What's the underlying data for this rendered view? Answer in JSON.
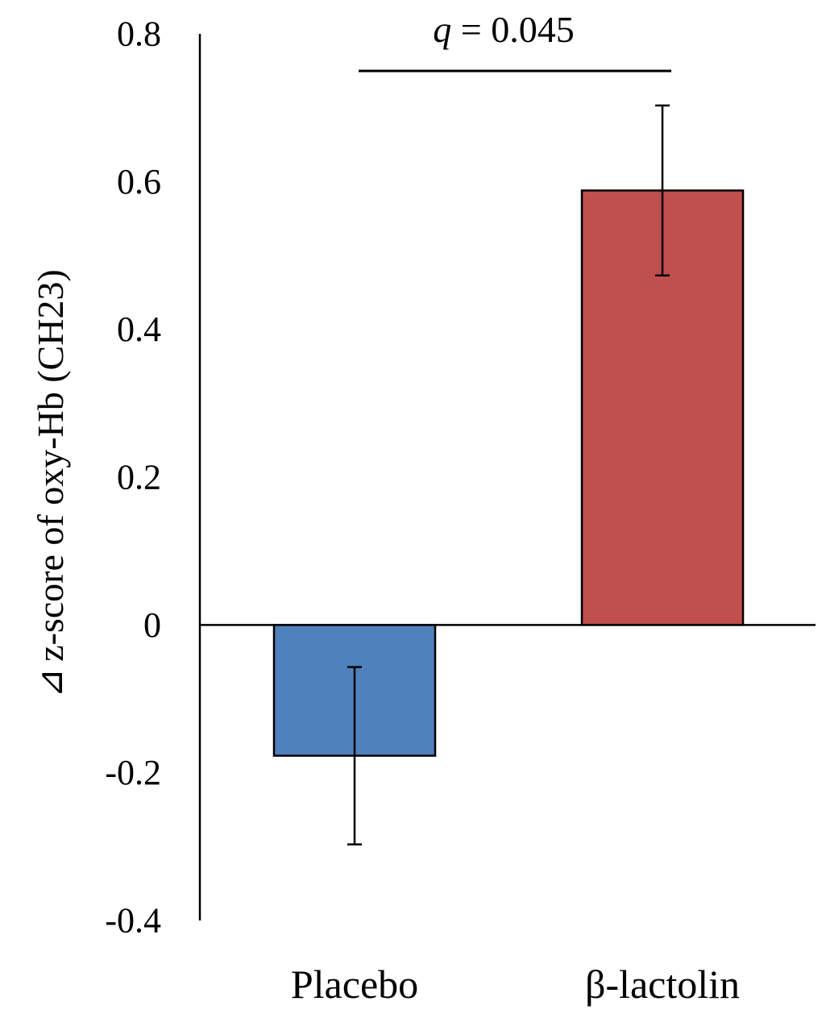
{
  "chart_data": {
    "type": "bar",
    "categories": [
      "Placebo",
      "β-lactolin"
    ],
    "values": [
      -0.177,
      0.588
    ],
    "error": [
      0.12,
      0.115
    ],
    "colors": [
      "#4F81BD",
      "#C0504D"
    ],
    "ylabel": "⊿ z-score of oxy-Hb (CH23)",
    "ylabel_symbol": "⊿",
    "ylabel_text": "z-score of oxy-Hb (CH23)",
    "ylim": [
      -0.4,
      0.8
    ],
    "yticks": [
      "0.8",
      "0.6",
      "0.4",
      "0.2",
      "0",
      "-0.2",
      "-0.4"
    ],
    "ytick_values": [
      0.8,
      0.6,
      0.4,
      0.2,
      0,
      -0.2,
      -0.4
    ],
    "grid": false,
    "annotation": {
      "q_symbol": "q",
      "q_rest": " = 0.045"
    }
  }
}
